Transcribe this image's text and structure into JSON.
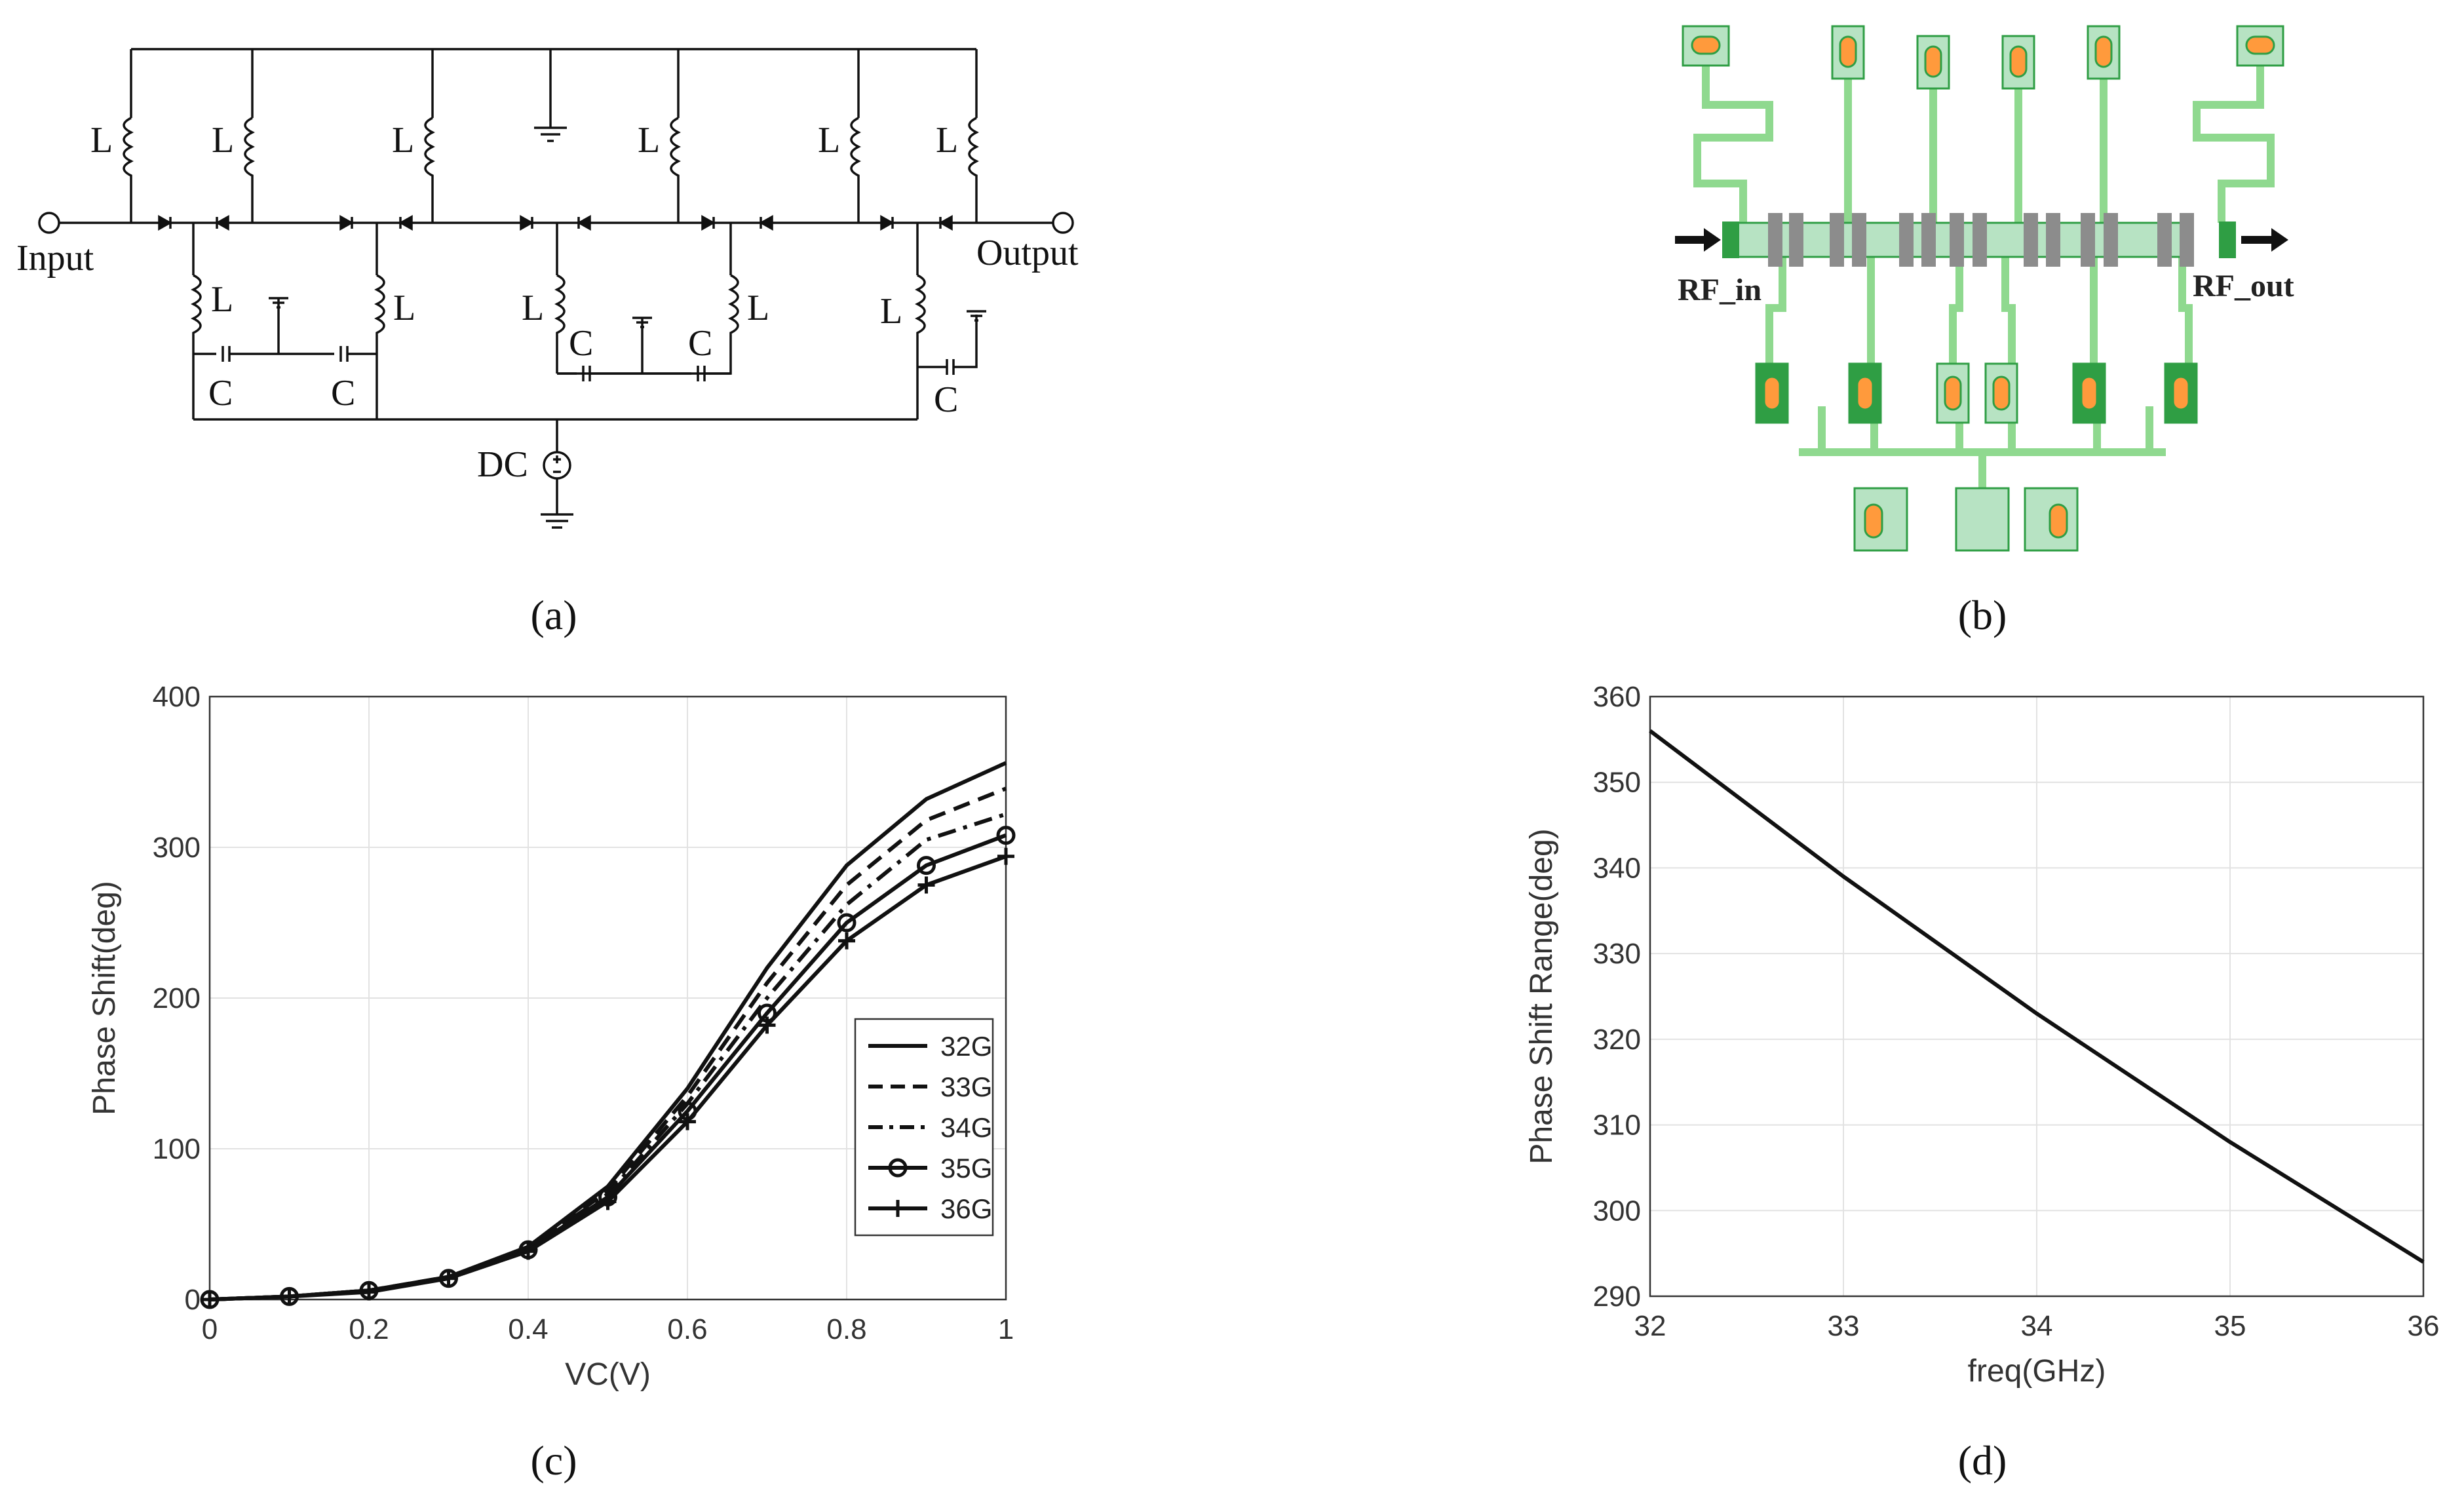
{
  "panels": {
    "a": {
      "caption": "(a)",
      "labels": {
        "input": "Input",
        "output": "Output",
        "dc": "DC",
        "inductor": "L",
        "capacitor": "C"
      }
    },
    "b": {
      "caption": "(b)",
      "labels": {
        "rf_in": "RF_in",
        "rf_out": "RF_out"
      }
    },
    "c": {
      "caption": "(c)"
    },
    "d": {
      "caption": "(d)"
    }
  },
  "colors": {
    "line": "#111111",
    "grid": "#e2e2e2",
    "layout_green": "#8fd98f",
    "layout_dark_green": "#2f9e44",
    "layout_pad": "#b7e3c3",
    "layout_orange": "#ff9a3c",
    "layout_gray": "#8c8c8c"
  },
  "chart_data": [
    {
      "panel": "c",
      "type": "line",
      "title": "",
      "xlabel": "VC(V)",
      "ylabel": "Phase Shift(deg)",
      "xlim": [
        0,
        1
      ],
      "ylim": [
        0,
        400
      ],
      "xticks": [
        0,
        0.2,
        0.4,
        0.6,
        0.8,
        1
      ],
      "xtick_labels": [
        "0",
        "0.2",
        "0.4",
        "0.6",
        "0.8",
        "1"
      ],
      "yticks": [
        0,
        100,
        200,
        300,
        400
      ],
      "ytick_labels": [
        "0",
        "100",
        "200",
        "300",
        "400"
      ],
      "grid": true,
      "legend_position": "center-right",
      "x": [
        0,
        0.1,
        0.2,
        0.3,
        0.4,
        0.5,
        0.6,
        0.7,
        0.8,
        0.9,
        1.0
      ],
      "series": [
        {
          "name": "32G",
          "style": "solid",
          "marker": "none",
          "values": [
            0,
            2,
            6,
            15,
            35,
            75,
            140,
            220,
            288,
            332,
            356
          ]
        },
        {
          "name": "33G",
          "style": "dashed",
          "marker": "none",
          "values": [
            0,
            2,
            6,
            15,
            34,
            72,
            135,
            210,
            275,
            318,
            339
          ]
        },
        {
          "name": "34G",
          "style": "dashdot",
          "marker": "none",
          "values": [
            0,
            2,
            6,
            14,
            34,
            70,
            130,
            200,
            262,
            305,
            322
          ]
        },
        {
          "name": "35G",
          "style": "solid",
          "marker": "circle",
          "values": [
            0,
            2,
            6,
            14,
            33,
            68,
            125,
            190,
            250,
            288,
            308
          ]
        },
        {
          "name": "36G",
          "style": "solid",
          "marker": "plus",
          "values": [
            0,
            2,
            5,
            14,
            32,
            65,
            118,
            182,
            238,
            275,
            294
          ]
        }
      ]
    },
    {
      "panel": "d",
      "type": "line",
      "title": "",
      "xlabel": "freq(GHz)",
      "ylabel": "Phase Shift Range(deg)",
      "xlim": [
        32,
        36
      ],
      "ylim": [
        290,
        360
      ],
      "xticks": [
        32,
        33,
        34,
        35,
        36
      ],
      "xtick_labels": [
        "32",
        "33",
        "34",
        "35",
        "36"
      ],
      "yticks": [
        290,
        300,
        310,
        320,
        330,
        340,
        350,
        360
      ],
      "ytick_labels": [
        "290",
        "300",
        "310",
        "320",
        "330",
        "340",
        "350",
        "360"
      ],
      "grid": true,
      "x": [
        32,
        33,
        34,
        35,
        36
      ],
      "series": [
        {
          "name": "Phase Shift Range",
          "style": "solid",
          "marker": "none",
          "values": [
            356,
            339,
            323,
            308,
            294
          ]
        }
      ]
    }
  ]
}
